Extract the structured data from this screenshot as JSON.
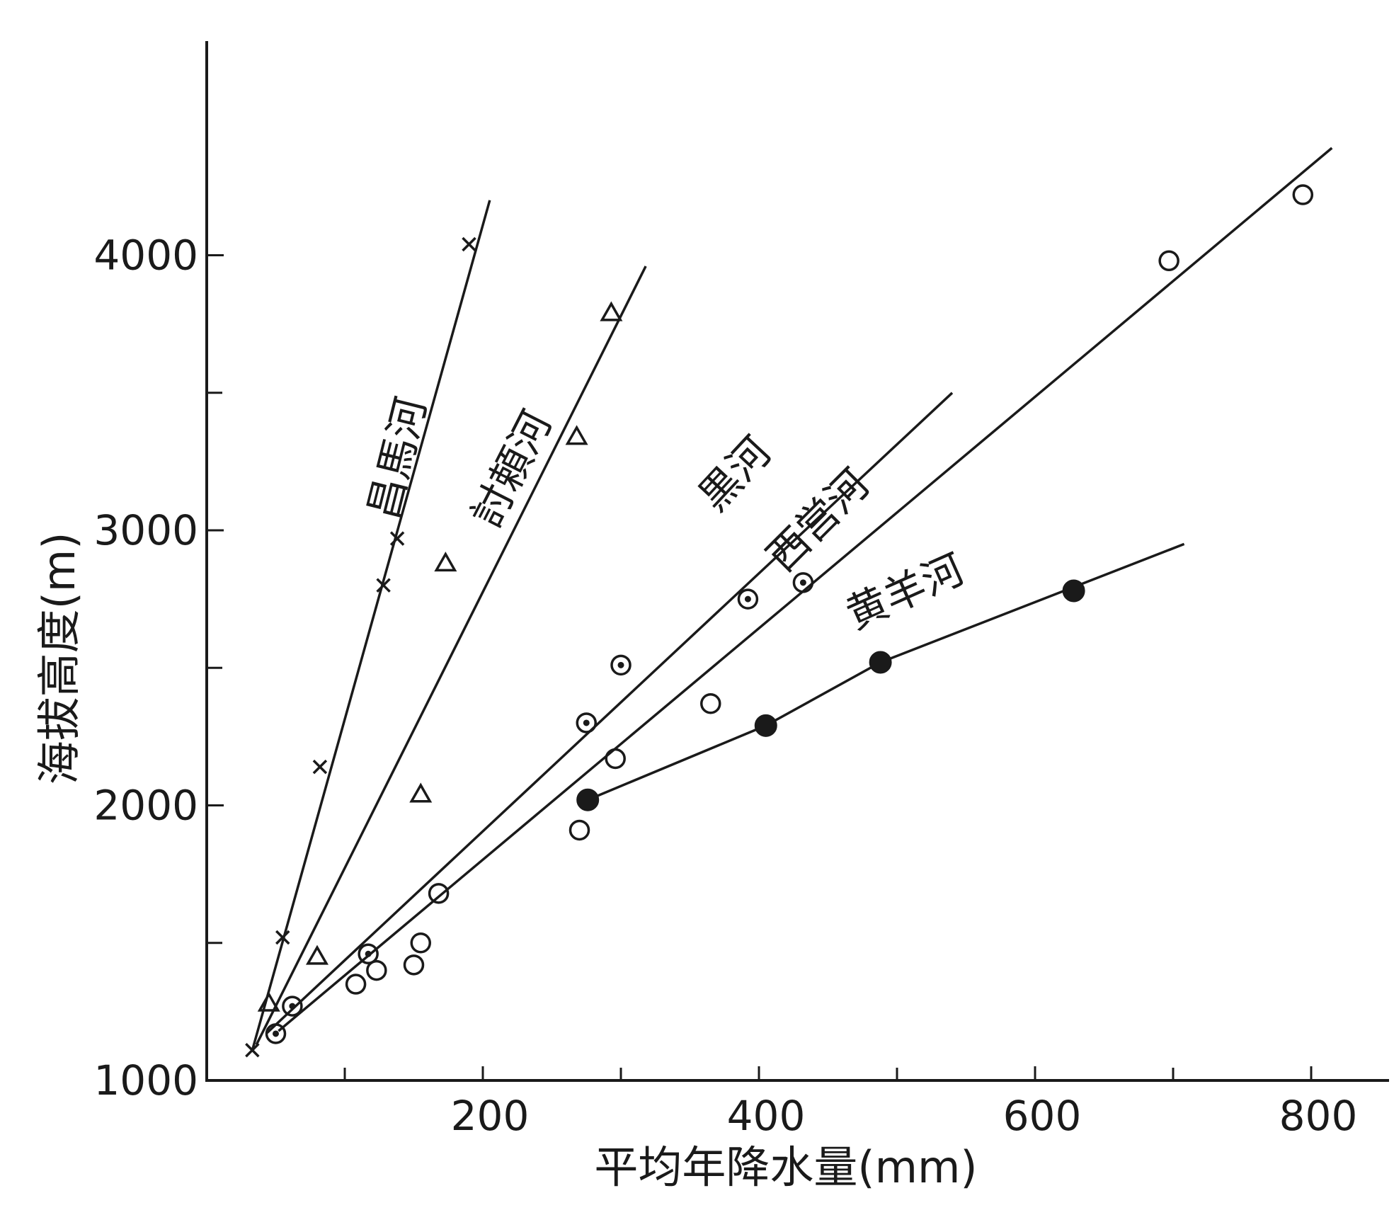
{
  "chart_data": {
    "type": "scatter",
    "xlabel": "平均年降水量(mm)",
    "ylabel": "海拔高度(m)",
    "xlim": [
      0,
      850
    ],
    "ylim": [
      1000,
      4300
    ],
    "x_ticks": [
      200,
      400,
      600,
      800
    ],
    "x_minor_ticks": [
      100,
      300,
      500,
      700
    ],
    "y_ticks": [
      1000,
      2000,
      3000,
      4000
    ],
    "y_minor_ticks": [
      1500,
      2500,
      3500
    ],
    "grid": false,
    "series": [
      {
        "name": "昌馬河",
        "marker": "x",
        "points": [
          [
            33,
            1110
          ],
          [
            55,
            1520
          ],
          [
            82,
            2140
          ],
          [
            128,
            2800
          ],
          [
            138,
            2970
          ],
          [
            190,
            4040
          ]
        ],
        "fit_line": [
          [
            33,
            1110
          ],
          [
            205,
            4200
          ]
        ]
      },
      {
        "name": "討頼河",
        "marker": "triangle",
        "points": [
          [
            45,
            1280
          ],
          [
            80,
            1450
          ],
          [
            155,
            2040
          ],
          [
            173,
            2880
          ],
          [
            268,
            3340
          ],
          [
            293,
            3790
          ]
        ],
        "fit_line": [
          [
            36,
            1130
          ],
          [
            318,
            3960
          ]
        ]
      },
      {
        "name": "黒河",
        "marker": "dot-circle",
        "points": [
          [
            50,
            1170
          ],
          [
            62,
            1270
          ],
          [
            117,
            1460
          ],
          [
            275,
            2300
          ],
          [
            300,
            2510
          ],
          [
            392,
            2750
          ],
          [
            432,
            2810
          ]
        ],
        "fit_line": [
          [
            43,
            1170
          ],
          [
            540,
            3500
          ]
        ]
      },
      {
        "name": "西営河",
        "marker": "circle",
        "points": [
          [
            108,
            1350
          ],
          [
            123,
            1400
          ],
          [
            150,
            1420
          ],
          [
            155,
            1500
          ],
          [
            168,
            1680
          ],
          [
            270,
            1910
          ],
          [
            296,
            2170
          ],
          [
            365,
            2370
          ],
          [
            697,
            3980
          ],
          [
            794,
            4220
          ]
        ],
        "fit_line": [
          [
            52,
            1180
          ],
          [
            815,
            4390
          ]
        ]
      },
      {
        "name": "黄羊河",
        "marker": "filled-circle",
        "points": [
          [
            276,
            2020
          ],
          [
            405,
            2290
          ],
          [
            488,
            2520
          ],
          [
            628,
            2780
          ]
        ],
        "fit_line": [
          [
            276,
            2020
          ],
          [
            405,
            2290
          ],
          [
            488,
            2520
          ],
          [
            708,
            2950
          ]
        ]
      }
    ]
  }
}
